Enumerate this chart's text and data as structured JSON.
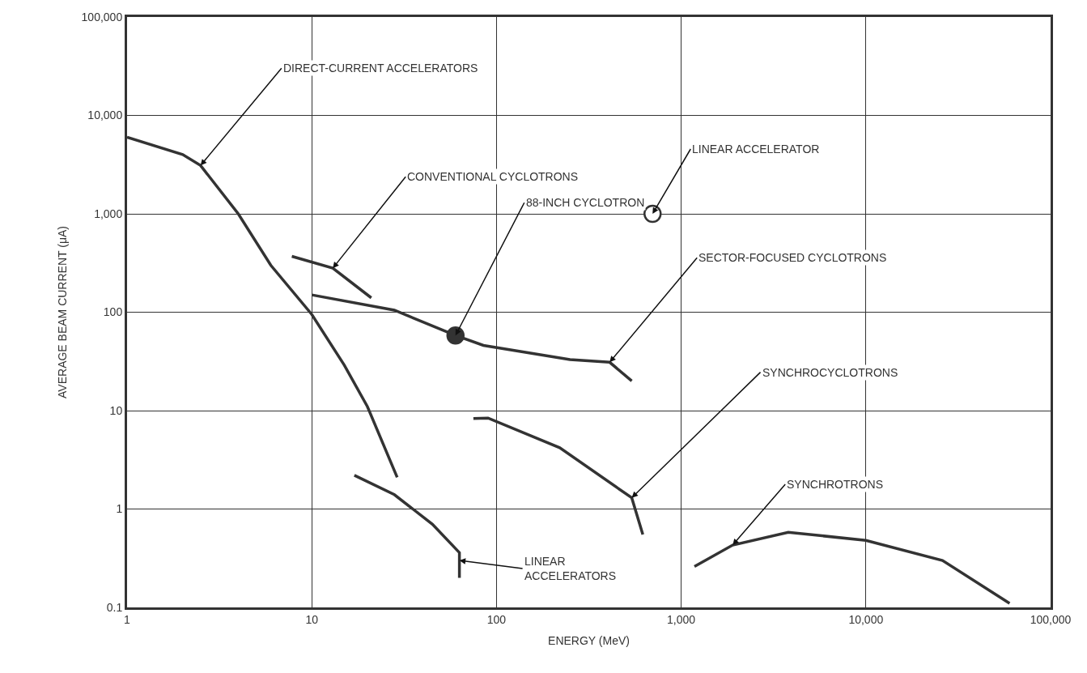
{
  "chart_data": {
    "type": "line",
    "xlabel": "ENERGY (MeV)",
    "ylabel": "AVERAGE BEAM CURRENT (μA)",
    "log": "xy",
    "grid": true,
    "line_style": "solid",
    "marker": "none",
    "xlim": [
      1,
      100000
    ],
    "ylim": [
      0.1,
      100000
    ],
    "xticks": [
      1,
      10,
      100,
      {
        "value": 1000,
        "label": "1,000"
      },
      {
        "value": 10000,
        "label": "10,000"
      },
      {
        "value": 100000,
        "label": "100,000"
      }
    ],
    "yticks": [
      0.1,
      1,
      10,
      100,
      {
        "value": 1000,
        "label": "1,000"
      },
      {
        "value": 10000,
        "label": "10,000"
      },
      {
        "value": 100000,
        "label": "100,000"
      }
    ],
    "series": [
      {
        "color": "#333333",
        "x": [
          1,
          2,
          2.5,
          4,
          6,
          10,
          15,
          20,
          29
        ],
        "values": [
          6000,
          4000,
          3100,
          1000,
          300,
          95,
          29,
          11,
          2.1
        ]
      },
      {
        "color": "#333333",
        "x": [
          7.8,
          13,
          21
        ],
        "values": [
          370,
          280,
          140
        ]
      },
      {
        "color": "#333333",
        "x": [
          10,
          28,
          60,
          85,
          250,
          410,
          540
        ],
        "values": [
          150,
          105,
          58,
          46,
          33,
          31,
          20
        ]
      },
      {
        "color": "#333333",
        "x": [
          75,
          90,
          220,
          540,
          620
        ],
        "values": [
          8.3,
          8.4,
          4.2,
          1.3,
          0.55
        ]
      },
      {
        "color": "#333333",
        "x": [
          17,
          28,
          45,
          63,
          63
        ],
        "values": [
          2.2,
          1.4,
          0.7,
          0.36,
          0.2
        ]
      },
      {
        "color": "#333333",
        "x": [
          1180,
          1900,
          3800,
          10000,
          26000,
          60000
        ],
        "values": [
          0.26,
          0.43,
          0.58,
          0.48,
          0.3,
          0.11
        ]
      },
      {
        "type": "scatter",
        "marker": "circle",
        "color": "#333333",
        "x": [
          60
        ],
        "values": [
          58
        ]
      },
      {
        "type": "scatter",
        "marker": "circle",
        "color": "#ffffff",
        "x": [
          700
        ],
        "values": [
          1000
        ]
      }
    ],
    "annotations": [
      {
        "text": "DIRECT-CURRENT ACCELERATORS",
        "x": 2.5,
        "y": 3100
      },
      {
        "text": "CONVENTIONAL CYCLOTRONS",
        "x": 13,
        "y": 280
      },
      {
        "text": "88-INCH CYCLOTRON",
        "x": 60,
        "y": 58
      },
      {
        "text": "LINEAR ACCELERATOR",
        "x": 700,
        "y": 1000
      },
      {
        "text": "SECTOR-FOCUSED CYCLOTRONS",
        "x": 410,
        "y": 31
      },
      {
        "text": "SYNCHROCYCLOTRONS",
        "x": 540,
        "y": 1.3
      },
      {
        "text": "SYNCHROTRONS",
        "x": 1900,
        "y": 0.43
      },
      {
        "text": "LINEAR\nACCELERATORS",
        "x": 63,
        "y": 0.3
      }
    ]
  }
}
